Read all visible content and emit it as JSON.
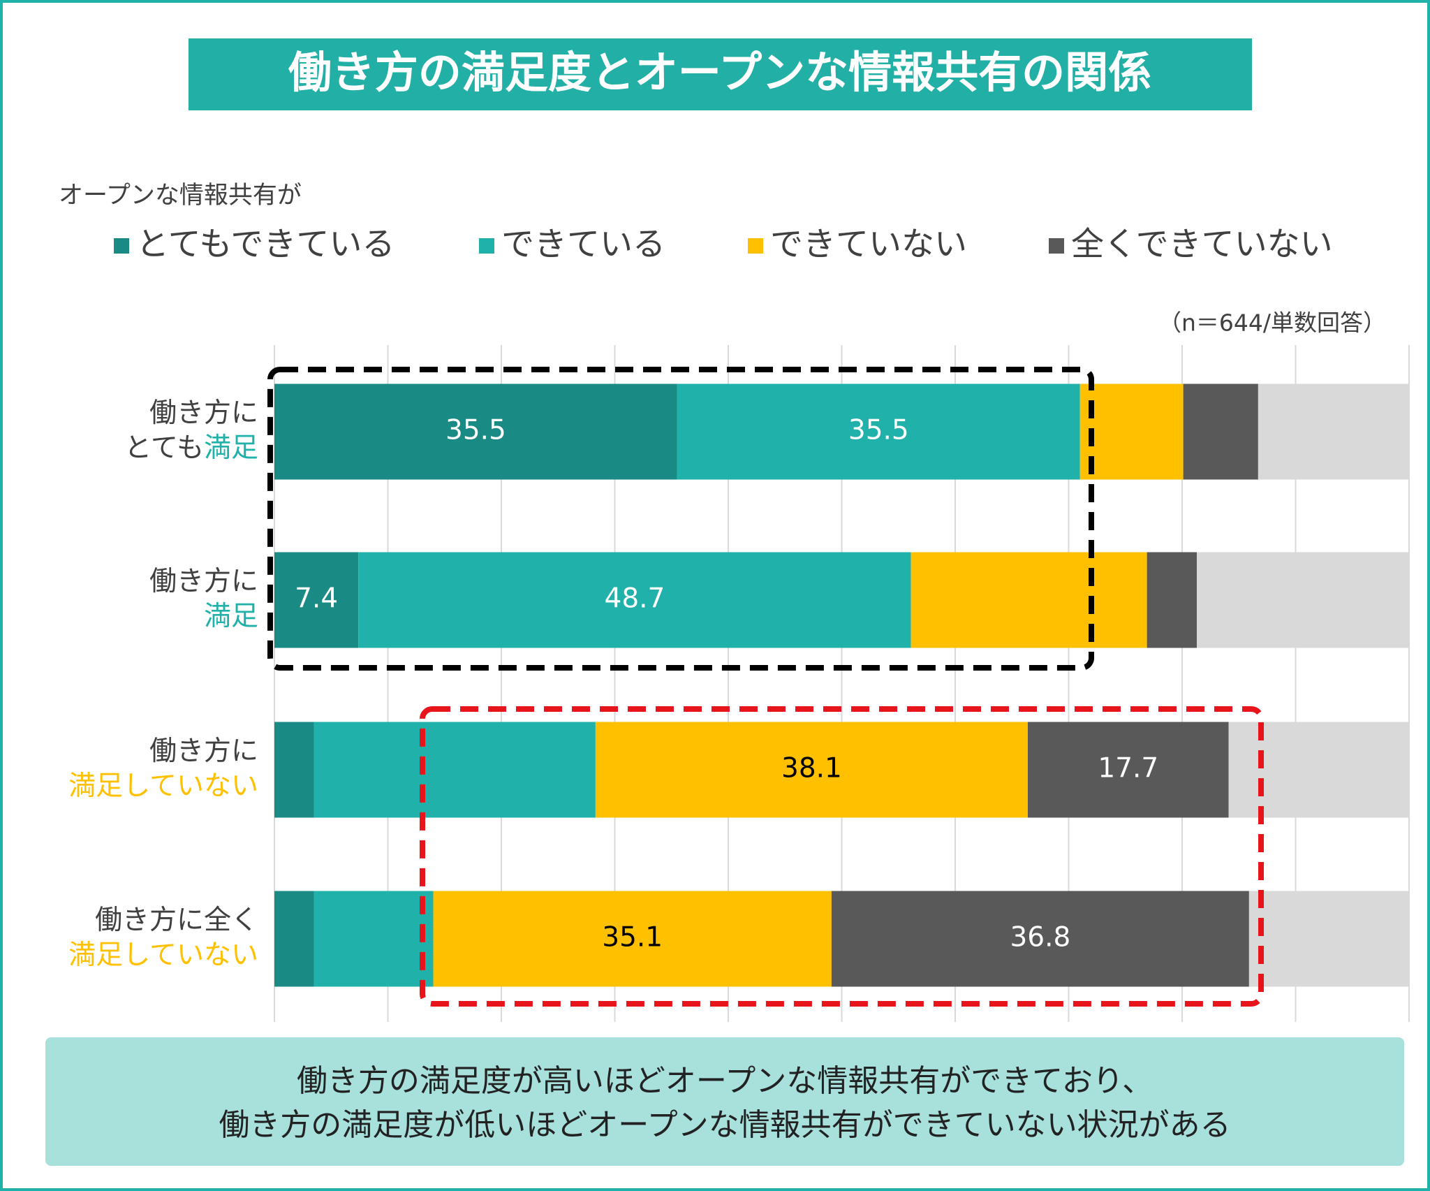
{
  "chart_data": {
    "type": "stacked_bar_horizontal",
    "title": "働き方の満足度とオープンな情報共有の関係",
    "legend_title": "オープンな情報共有が",
    "note": "（n＝644/単数回答）",
    "categories": [
      [
        [
          {
            "text": "働き方に",
            "color": "#404040"
          }
        ],
        [
          {
            "text": "とても",
            "color": "#404040"
          },
          {
            "text": "満足",
            "color": "#20b2aa"
          }
        ]
      ],
      [
        [
          {
            "text": "働き方に",
            "color": "#404040"
          }
        ],
        [
          {
            "text": "満足",
            "color": "#20b2aa"
          }
        ]
      ],
      [
        [
          {
            "text": "働き方に",
            "color": "#404040"
          }
        ],
        [
          {
            "text": "満足していない",
            "color": "#ffc000"
          }
        ]
      ],
      [
        [
          {
            "text": "働き方に全く",
            "color": "#404040"
          }
        ],
        [
          {
            "text": "満足していない",
            "color": "#ffc000"
          }
        ]
      ]
    ],
    "series": [
      {
        "name": "とてもできている",
        "color": "#1a8a84",
        "values": [
          35.5,
          7.4,
          3.5,
          3.5
        ],
        "value_labels": [
          "35.5",
          "7.4",
          null,
          null
        ]
      },
      {
        "name": "できている",
        "color": "#20b2aa",
        "values": [
          35.5,
          48.7,
          24.8,
          10.5
        ],
        "value_labels": [
          "35.5",
          "48.7",
          null,
          null
        ]
      },
      {
        "name": "できていない",
        "color": "#ffc000",
        "values": [
          9.1,
          20.8,
          38.1,
          35.1
        ],
        "value_labels": [
          null,
          null,
          "38.1",
          "35.1"
        ]
      },
      {
        "name": "全くできていない",
        "color": "#595959",
        "values": [
          6.6,
          4.4,
          17.7,
          36.8
        ],
        "value_labels": [
          null,
          null,
          "17.7",
          "36.8"
        ]
      },
      {
        "name": null,
        "color": "#d9d9d9",
        "values": [
          13.3,
          18.7,
          15.9,
          14.1
        ]
      }
    ],
    "xlim": [
      0,
      100
    ],
    "xticks": [
      0,
      10,
      20,
      30,
      40,
      50,
      60,
      70,
      80,
      90,
      100
    ],
    "grid": true,
    "conclusion": [
      "働き方の満足度が高いほどオープンな情報共有ができており、",
      "働き方の満足度が低いほどオープンな情報共有ができていない状況がある"
    ]
  }
}
